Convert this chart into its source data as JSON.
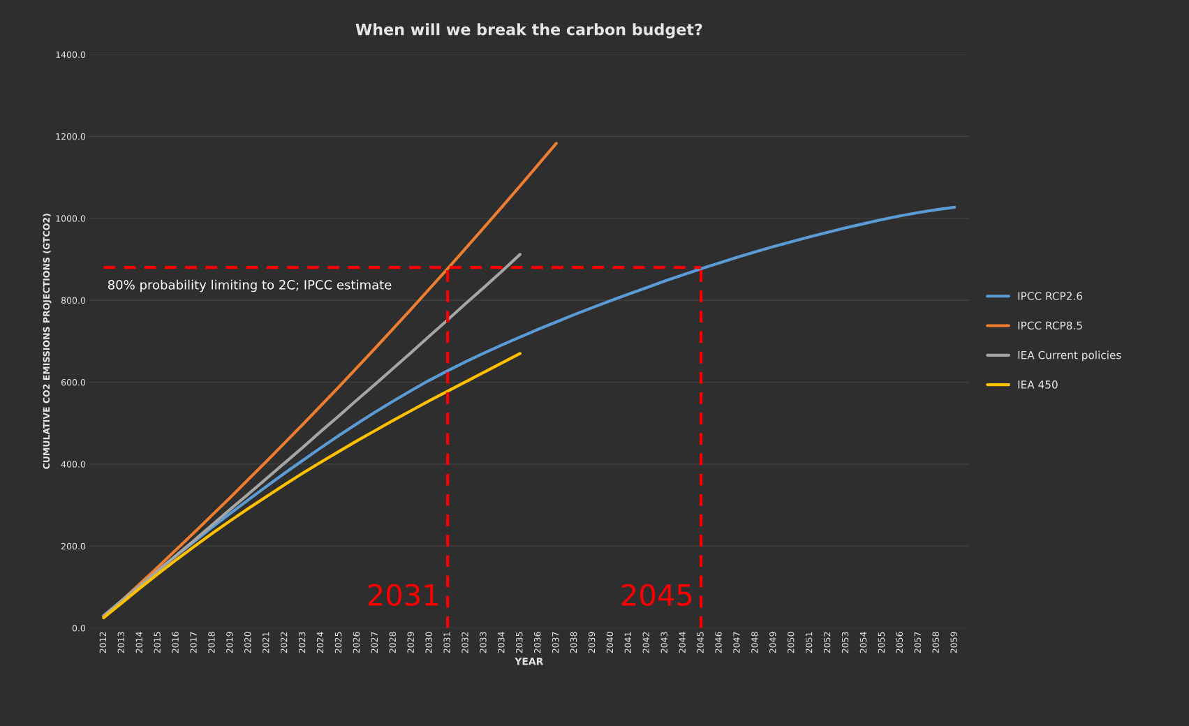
{
  "chart_data": {
    "type": "line",
    "title": "When will we break the carbon budget?",
    "xlabel": "YEAR",
    "ylabel": "CUMULATIVE CO2 EMISSIONS PROJECTIONS (GTCO2)",
    "categories": [
      "2012",
      "2013",
      "2014",
      "2015",
      "2016",
      "2017",
      "2018",
      "2019",
      "2020",
      "2021",
      "2022",
      "2023",
      "2024",
      "2025",
      "2026",
      "2027",
      "2028",
      "2029",
      "2030",
      "2031",
      "2032",
      "2033",
      "2034",
      "2035",
      "2036",
      "2037",
      "2038",
      "2039",
      "2040",
      "2041",
      "2042",
      "2043",
      "2044",
      "2045",
      "2046",
      "2047",
      "2048",
      "2049",
      "2050",
      "2051",
      "2052",
      "2053",
      "2054",
      "2055",
      "2056",
      "2057",
      "2058",
      "2059"
    ],
    "series": [
      {
        "name": "IPCC RCP2.6",
        "color": "#5b9bd5",
        "values": [
          30,
          67,
          104,
          140,
          176,
          211,
          246,
          280,
          313,
          346,
          378,
          409,
          440,
          470,
          499,
          527,
          554,
          580,
          605,
          628,
          650,
          671,
          691,
          710,
          729,
          747,
          765,
          782,
          799,
          815,
          831,
          847,
          862,
          877,
          891,
          905,
          918,
          931,
          943,
          955,
          966,
          977,
          987,
          997,
          1006,
          1014,
          1021,
          1027
        ]
      },
      {
        "name": "IPCC RCP8.5",
        "color": "#ed7d31",
        "values": [
          27,
          67,
          108,
          149,
          191,
          233,
          276,
          319,
          363,
          407,
          452,
          497,
          543,
          589,
          636,
          683,
          731,
          779,
          828,
          877,
          927,
          977,
          1028,
          1079,
          1131,
          1183,
          null,
          null,
          null,
          null,
          null,
          null,
          null,
          null,
          null,
          null,
          null,
          null,
          null,
          null,
          null,
          null,
          null,
          null,
          null,
          null,
          null,
          null
        ]
      },
      {
        "name": "IEA Current policies",
        "color": "#a5a5a5",
        "values": [
          30,
          67,
          103,
          140,
          177,
          214,
          252,
          290,
          327,
          365,
          403,
          441,
          480,
          518,
          557,
          595,
          634,
          673,
          713,
          752,
          792,
          831,
          871,
          912,
          null,
          null,
          null,
          null,
          null,
          null,
          null,
          null,
          null,
          null,
          null,
          null,
          null,
          null,
          null,
          null,
          null,
          null,
          null,
          null,
          null,
          null,
          null,
          null
        ]
      },
      {
        "name": "IEA 450",
        "color": "#ffc000",
        "values": [
          25,
          61,
          97,
          132,
          166,
          199,
          231,
          262,
          292,
          321,
          350,
          378,
          405,
          431,
          457,
          482,
          507,
          531,
          555,
          578,
          601,
          624,
          647,
          670,
          null,
          null,
          null,
          null,
          null,
          null,
          null,
          null,
          null,
          null,
          null,
          null,
          null,
          null,
          null,
          null,
          null,
          null,
          null,
          null,
          null,
          null,
          null,
          null
        ]
      }
    ],
    "ylim": [
      0,
      1400
    ],
    "yticks": [
      {
        "value": 0,
        "label": "0.0"
      },
      {
        "value": 200,
        "label": "200.0"
      },
      {
        "value": 400,
        "label": "400.0"
      },
      {
        "value": 600,
        "label": "600.0"
      },
      {
        "value": 800,
        "label": "800.0"
      },
      {
        "value": 1000,
        "label": "1000.0"
      },
      {
        "value": 1200,
        "label": "1200.0"
      },
      {
        "value": 1400,
        "label": "1400.0"
      }
    ],
    "ref_lines": [
      {
        "axis": "y",
        "value": 880,
        "label": "80% probability limiting to 2C; IPCC estimate",
        "color": "#ff0000",
        "line_style": "dashed"
      },
      {
        "axis": "x",
        "value": "2031",
        "label": "2031",
        "color": "#ff0000",
        "line_style": "dashed"
      },
      {
        "axis": "x",
        "value": "2045",
        "label": "2045",
        "color": "#ff0000",
        "line_style": "dashed"
      }
    ],
    "grid": "y",
    "legend": "right",
    "marker": "none",
    "line_style": "solid"
  }
}
